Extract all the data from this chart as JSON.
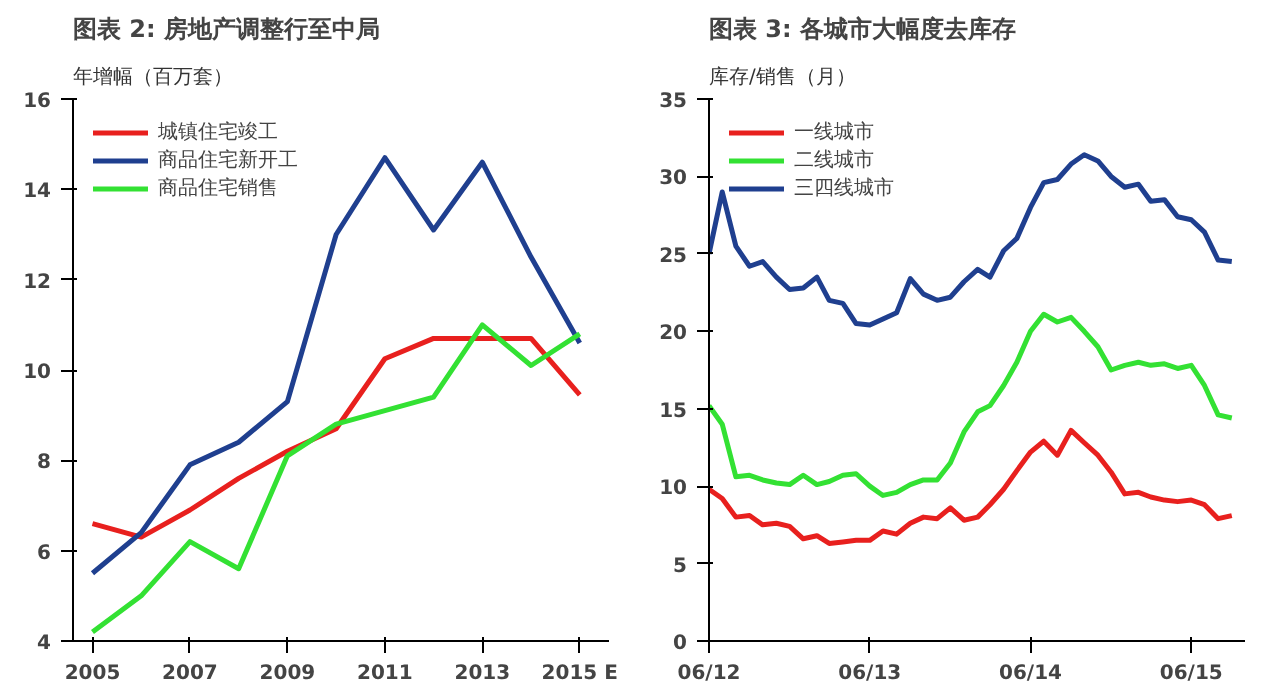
{
  "chart_data": [
    {
      "type": "line",
      "title": "图表 2: 房地产调整行至中局",
      "ylabel": "年增幅（百万套）",
      "x": [
        2005,
        2006,
        2007,
        2008,
        2009,
        2010,
        2011,
        2012,
        2013,
        2014,
        2015
      ],
      "xlim": [
        2004.6,
        2015.6
      ],
      "xticks": [
        2005,
        2007,
        2009,
        2011,
        2013,
        {
          "value": 2015,
          "label": "2015 E"
        }
      ],
      "ylim": [
        4,
        16
      ],
      "yticks": [
        4,
        6,
        8,
        10,
        12,
        14,
        16
      ],
      "grid": false,
      "legend": "top left",
      "series": [
        {
          "name": "城镇住宅竣工",
          "color": "#e8201e",
          "values": [
            6.6,
            6.3,
            6.9,
            7.6,
            8.2,
            8.7,
            10.25,
            10.7,
            10.7,
            10.7,
            9.45
          ]
        },
        {
          "name": "商品住宅新开工",
          "color": "#1f3f8f",
          "values": [
            5.5,
            6.4,
            7.9,
            8.4,
            9.3,
            13.0,
            14.7,
            13.1,
            14.6,
            12.5,
            10.6
          ]
        },
        {
          "name": "商品住宅销售",
          "color": "#33e133",
          "values": [
            4.2,
            5.0,
            6.2,
            5.6,
            8.1,
            8.8,
            9.1,
            9.4,
            11.0,
            10.1,
            10.8
          ]
        }
      ]
    },
    {
      "type": "line",
      "title": "图表 3: 各城市大幅度去库存",
      "ylabel": "库存/销售（月）",
      "x": [
        "2012-06",
        "2012-07",
        "2012-08",
        "2012-09",
        "2012-10",
        "2012-11",
        "2012-12",
        "2013-01",
        "2013-02",
        "2013-03",
        "2013-04",
        "2013-05",
        "2013-06",
        "2013-07",
        "2013-08",
        "2013-09",
        "2013-10",
        "2013-11",
        "2013-12",
        "2014-01",
        "2014-02",
        "2014-03",
        "2014-04",
        "2014-05",
        "2014-06",
        "2014-07",
        "2014-08",
        "2014-09",
        "2014-10",
        "2014-11",
        "2014-12",
        "2015-01",
        "2015-02",
        "2015-03",
        "2015-04",
        "2015-05",
        "2015-06",
        "2015-07",
        "2015-08",
        "2015-09"
      ],
      "xlim": [
        "2012-06",
        "2015-10"
      ],
      "xticks": [
        {
          "value": "2012-06",
          "label": "06/12"
        },
        {
          "value": "2013-06",
          "label": "06/13"
        },
        {
          "value": "2014-06",
          "label": "06/14"
        },
        {
          "value": "2015-06",
          "label": "06/15"
        }
      ],
      "ylim": [
        0,
        35
      ],
      "yticks": [
        0,
        5,
        10,
        15,
        20,
        25,
        30,
        35
      ],
      "grid": false,
      "legend": "top left",
      "series": [
        {
          "name": "一线城市",
          "color": "#e8201e",
          "values": [
            9.8,
            9.2,
            8.0,
            8.1,
            7.5,
            7.6,
            7.4,
            6.6,
            6.8,
            6.3,
            6.4,
            6.5,
            6.5,
            7.1,
            6.9,
            7.6,
            8.0,
            7.9,
            8.6,
            7.8,
            8.0,
            8.8,
            9.8,
            11.0,
            12.2,
            12.9,
            12.0,
            13.6,
            12.8,
            12.0,
            10.9,
            9.5,
            9.6,
            9.3,
            9.1,
            9.0,
            9.1,
            8.8,
            7.9,
            8.1
          ]
        },
        {
          "name": "二线城市",
          "color": "#33e133",
          "values": [
            15.2,
            14.0,
            10.6,
            10.7,
            10.4,
            10.2,
            10.1,
            10.7,
            10.1,
            10.3,
            10.7,
            10.8,
            10.0,
            9.4,
            9.6,
            10.1,
            10.4,
            10.4,
            11.5,
            13.5,
            14.8,
            15.2,
            16.5,
            18.0,
            20.0,
            21.1,
            20.6,
            20.9,
            20.0,
            19.0,
            17.5,
            17.8,
            18.0,
            17.8,
            17.9,
            17.6,
            17.8,
            16.5,
            14.6,
            14.4
          ]
        },
        {
          "name": "三四线城市",
          "color": "#1f3f8f",
          "values": [
            25,
            29,
            25.5,
            24.2,
            24.5,
            23.5,
            22.7,
            22.8,
            23.5,
            22.0,
            21.8,
            20.5,
            20.4,
            20.8,
            21.2,
            23.4,
            22.4,
            22.0,
            22.2,
            23.2,
            24.0,
            23.5,
            25.2,
            26.0,
            28.0,
            29.6,
            29.8,
            30.8,
            31.4,
            31.0,
            30.0,
            29.3,
            29.5,
            28.4,
            28.5,
            27.4,
            27.2,
            26.4,
            24.6,
            24.5
          ]
        }
      ]
    }
  ]
}
